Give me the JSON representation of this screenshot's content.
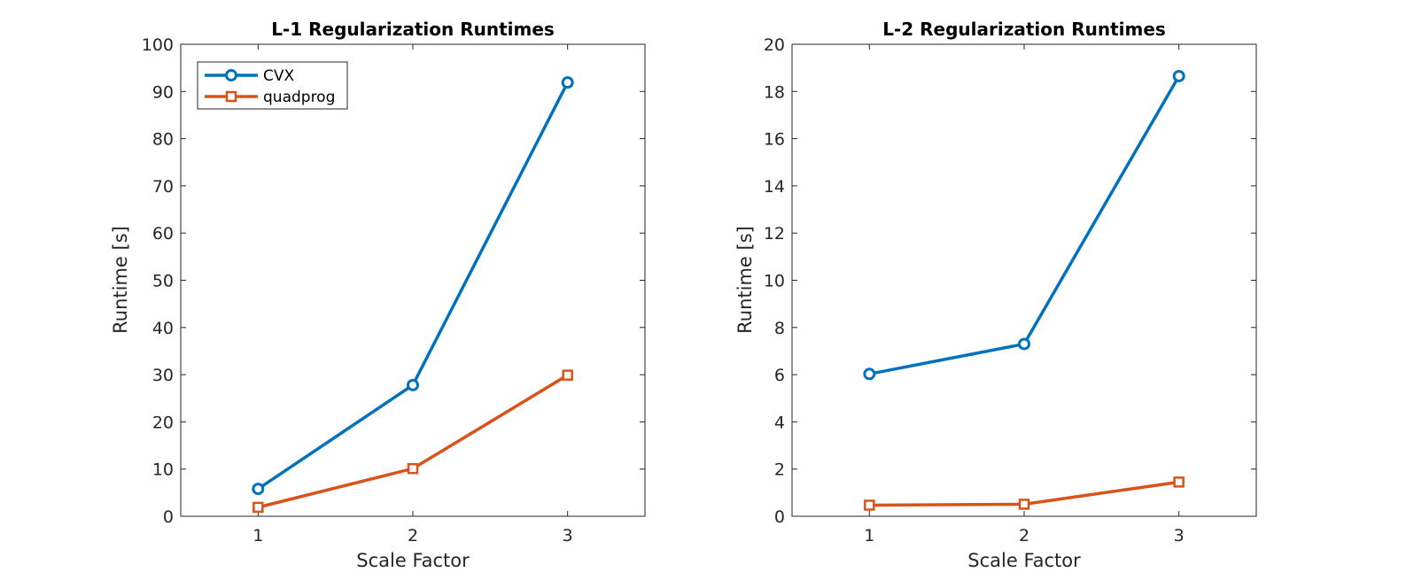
{
  "chart_data": [
    {
      "type": "line",
      "title": "L-1 Regularization Runtimes",
      "xlabel": "Scale Factor",
      "ylabel": "Runtime [s]",
      "x": [
        1,
        2,
        3
      ],
      "xlim": [
        0.5,
        3.5
      ],
      "ylim": [
        0,
        100
      ],
      "xticks": [
        1,
        2,
        3
      ],
      "yticks": [
        0,
        10,
        20,
        30,
        40,
        50,
        60,
        70,
        80,
        90,
        100
      ],
      "grid": false,
      "legend": {
        "placement": "top-left",
        "entries": [
          "CVX",
          "quadprog"
        ]
      },
      "series": [
        {
          "name": "CVX",
          "marker": "circle",
          "color": "#0072BD",
          "values": [
            5.8,
            27.8,
            91.9
          ]
        },
        {
          "name": "quadprog",
          "marker": "square",
          "color": "#D95319",
          "values": [
            1.9,
            10.1,
            29.9
          ]
        }
      ]
    },
    {
      "type": "line",
      "title": "L-2 Regularization Runtimes",
      "xlabel": "Scale Factor",
      "ylabel": "Runtime [s]",
      "x": [
        1,
        2,
        3
      ],
      "xlim": [
        0.5,
        3.5
      ],
      "ylim": [
        0,
        20
      ],
      "xticks": [
        1,
        2,
        3
      ],
      "yticks": [
        0,
        2,
        4,
        6,
        8,
        10,
        12,
        14,
        16,
        18,
        20
      ],
      "grid": false,
      "legend": null,
      "series": [
        {
          "name": "CVX",
          "marker": "circle",
          "color": "#0072BD",
          "values": [
            6.03,
            7.3,
            18.65
          ]
        },
        {
          "name": "quadprog",
          "marker": "square",
          "color": "#D95319",
          "values": [
            0.47,
            0.51,
            1.45
          ]
        }
      ]
    }
  ]
}
